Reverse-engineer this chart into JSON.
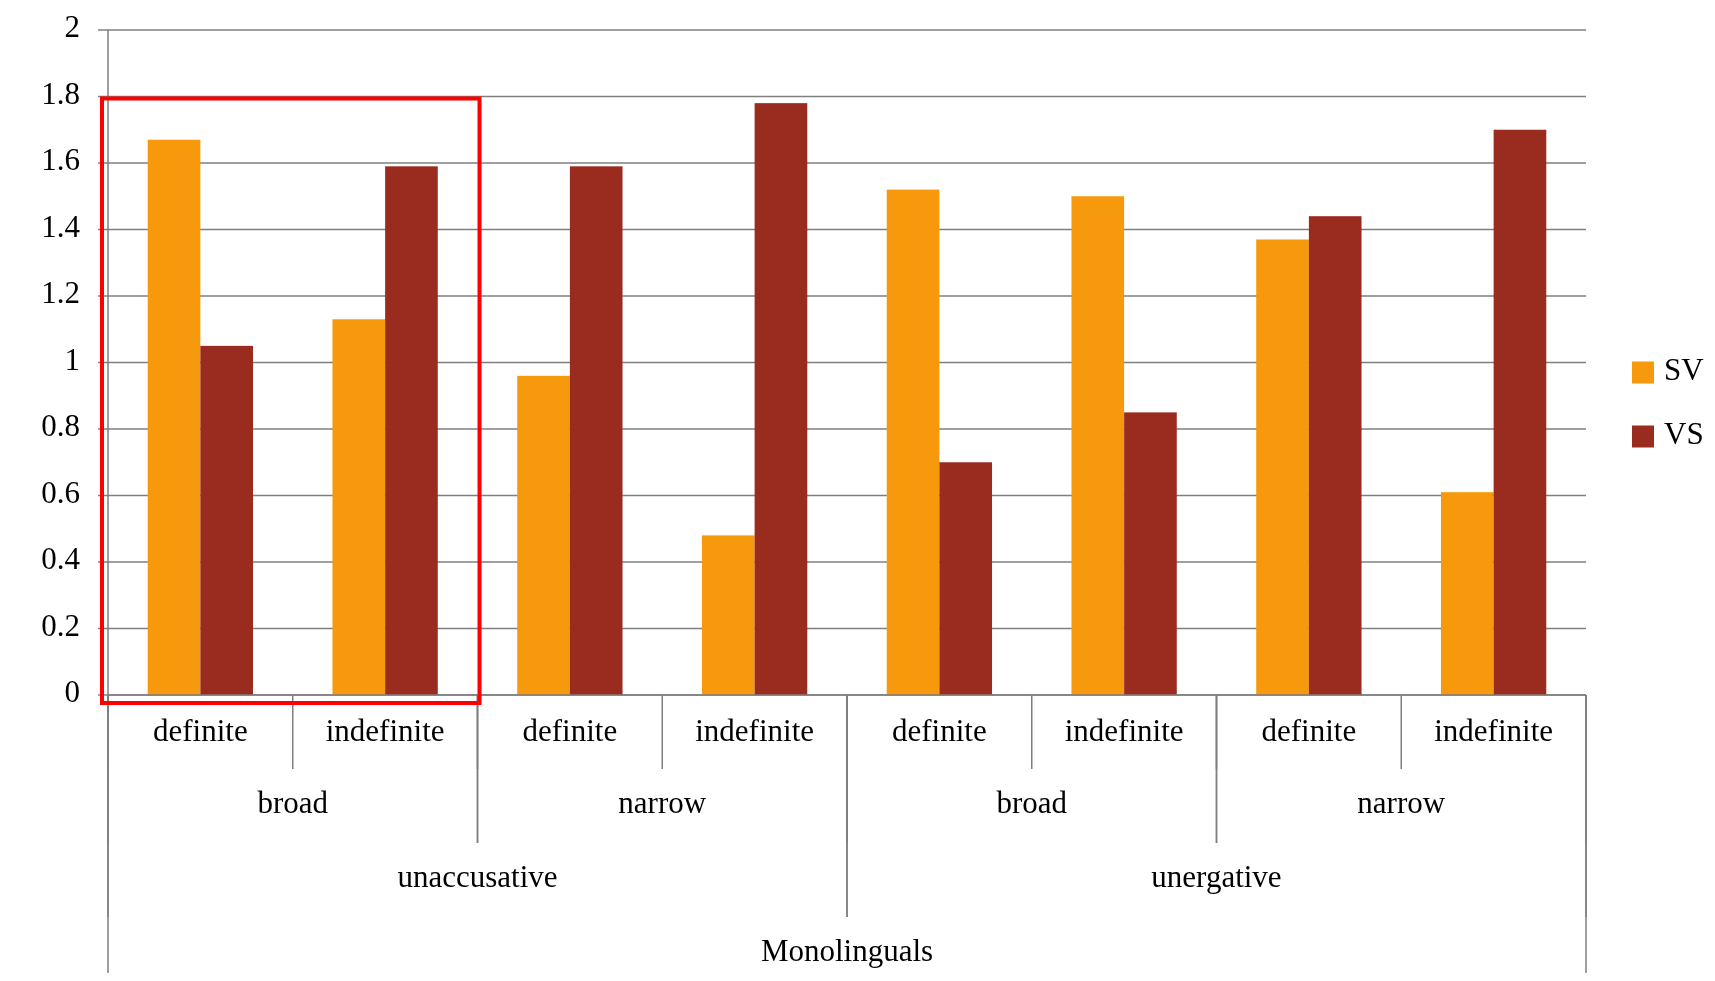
{
  "chart_data": {
    "type": "bar",
    "categories": [
      "definite",
      "indefinite",
      "definite",
      "indefinite",
      "definite",
      "indefinite",
      "definite",
      "indefinite"
    ],
    "series": [
      {
        "name": "SV",
        "color": "#f7990c",
        "values": [
          1.67,
          1.13,
          0.96,
          0.48,
          1.52,
          1.5,
          1.37,
          0.61
        ]
      },
      {
        "name": "VS",
        "color": "#9a2c1f",
        "values": [
          1.05,
          1.59,
          1.59,
          1.78,
          0.7,
          0.85,
          1.44,
          1.7
        ]
      }
    ],
    "annotations": [
      "broad",
      "narrow",
      "broad",
      "narrow",
      "unaccusative",
      "unergative",
      "Monolinguals"
    ],
    "ylim": [
      0,
      2
    ],
    "yticks": [
      0,
      0.2,
      0.4,
      0.6,
      0.8,
      1,
      1.2,
      1.4,
      1.6,
      1.8,
      2
    ],
    "grid": "y",
    "legend": "right"
  }
}
